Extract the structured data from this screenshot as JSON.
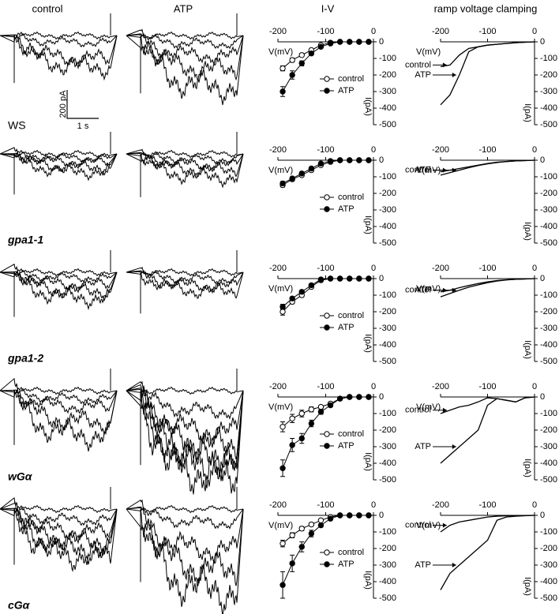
{
  "headers": [
    "control",
    "ATP",
    "I-V",
    "ramp voltage clamping"
  ],
  "scale_bar": {
    "current": "200 pA",
    "time": "1 s"
  },
  "rows": [
    {
      "label": "WS",
      "control_traces": [
        0,
        -50,
        -170,
        -230
      ],
      "atp_traces": [
        0,
        -60,
        -150,
        -250,
        -380
      ]
    },
    {
      "label": "gpa1-1",
      "control_traces": [
        0,
        -30,
        -60,
        -100,
        -130
      ],
      "atp_traces": [
        0,
        -40,
        -80,
        -120,
        -170
      ]
    },
    {
      "label": "gpa1-2",
      "control_traces": [
        0,
        -40,
        -90,
        -140,
        -190
      ],
      "atp_traces": [
        0,
        -50,
        -100,
        -140
      ]
    },
    {
      "label": "wGα",
      "control_traces": [
        0,
        -60,
        -120,
        -230,
        -330
      ],
      "atp_traces": [
        0,
        -150,
        -300,
        -400,
        -500,
        -560,
        -620
      ]
    },
    {
      "label": "cGα",
      "control_traces": [
        0,
        -80,
        -170,
        -240,
        -300,
        -350
      ],
      "atp_traces": [
        0,
        -100,
        -300,
        -450,
        -600
      ]
    }
  ],
  "chart_data": [
    {
      "type": "iv",
      "x_label": "V(mV)",
      "y_label": "I(pA)",
      "x": [
        -190,
        -170,
        -150,
        -130,
        -110,
        -90,
        -70,
        -50,
        -30,
        -10
      ],
      "xlim": [
        -200,
        0
      ],
      "xticks": [
        -200,
        -100,
        0
      ],
      "ylim": [
        -500,
        0
      ],
      "yticks": [
        0,
        -100,
        -200,
        -300,
        -400,
        -500
      ],
      "series": [
        {
          "name": "control",
          "color": "#ffffff",
          "values": [
            -160,
            -110,
            -80,
            -50,
            -20,
            -5,
            0,
            0,
            0,
            0
          ],
          "errors": [
            15,
            12,
            10,
            8,
            6,
            4,
            0,
            0,
            0,
            0
          ]
        },
        {
          "name": "ATP",
          "color": "#000000",
          "values": [
            -300,
            -200,
            -130,
            -70,
            -30,
            -10,
            0,
            0,
            0,
            0
          ],
          "errors": [
            30,
            25,
            15,
            10,
            8,
            4,
            0,
            0,
            0,
            0
          ]
        }
      ]
    },
    {
      "type": "ramp",
      "x_label": "V(mV)",
      "y_label": "I(pA)",
      "x": [
        -200,
        -180,
        -160,
        -140,
        -120,
        -100,
        -80,
        -60,
        -40,
        -20,
        0
      ],
      "xlim": [
        -200,
        0
      ],
      "xticks": [
        -200,
        -100,
        0
      ],
      "ylim": [
        -500,
        0
      ],
      "yticks": [
        0,
        -100,
        -200,
        -300,
        -400,
        -500
      ],
      "series": [
        {
          "name": "control",
          "color": "#000000",
          "values": [
            -150,
            -140,
            -80,
            -40,
            -30,
            -20,
            -15,
            -10,
            -5,
            -2,
            0
          ]
        },
        {
          "name": "ATP",
          "color": "#000000",
          "values": [
            -380,
            -320,
            -200,
            -60,
            -30,
            -20,
            -15,
            -10,
            -5,
            -2,
            0
          ]
        }
      ]
    },
    {
      "type": "iv",
      "x_label": "V(mV)",
      "y_label": "I(pA)",
      "x": [
        -190,
        -170,
        -150,
        -130,
        -110,
        -90,
        -70,
        -50,
        -30,
        -10
      ],
      "xlim": [
        -200,
        0
      ],
      "xticks": [
        -200,
        -100,
        0
      ],
      "ylim": [
        -500,
        0
      ],
      "yticks": [
        0,
        -100,
        -200,
        -300,
        -400,
        -500
      ],
      "series": [
        {
          "name": "control",
          "color": "#ffffff",
          "values": [
            -150,
            -115,
            -90,
            -60,
            -30,
            -10,
            0,
            0,
            0,
            0
          ],
          "errors": [
            12,
            10,
            8,
            6,
            5,
            3,
            0,
            0,
            0,
            0
          ]
        },
        {
          "name": "ATP",
          "color": "#000000",
          "values": [
            -140,
            -110,
            -80,
            -50,
            -20,
            -5,
            0,
            0,
            0,
            0
          ],
          "errors": [
            12,
            10,
            8,
            6,
            5,
            3,
            0,
            0,
            0,
            0
          ]
        }
      ]
    },
    {
      "type": "ramp",
      "x_label": "V(mV)",
      "y_label": "I(pA)",
      "x": [
        -200,
        -180,
        -160,
        -140,
        -120,
        -100,
        -80,
        -60,
        -40,
        -20,
        0
      ],
      "xlim": [
        -200,
        0
      ],
      "xticks": [
        -200,
        -100,
        0
      ],
      "ylim": [
        -500,
        0
      ],
      "yticks": [
        0,
        -100,
        -200,
        -300,
        -400,
        -500
      ],
      "series": [
        {
          "name": "control",
          "color": "#000000",
          "values": [
            -70,
            -60,
            -50,
            -40,
            -30,
            -20,
            -12,
            -8,
            -4,
            -2,
            0
          ]
        },
        {
          "name": "ATP",
          "color": "#000000",
          "values": [
            -90,
            -75,
            -60,
            -45,
            -32,
            -22,
            -14,
            -8,
            -4,
            -2,
            0
          ]
        }
      ]
    },
    {
      "type": "iv",
      "x_label": "V(mV)",
      "y_label": "I(pA)",
      "x": [
        -190,
        -170,
        -150,
        -130,
        -110,
        -90,
        -70,
        -50,
        -30,
        -10
      ],
      "xlim": [
        -200,
        0
      ],
      "xticks": [
        -200,
        -100,
        0
      ],
      "ylim": [
        -500,
        0
      ],
      "yticks": [
        0,
        -100,
        -200,
        -300,
        -400,
        -500
      ],
      "series": [
        {
          "name": "control",
          "color": "#ffffff",
          "values": [
            -200,
            -140,
            -100,
            -50,
            -10,
            0,
            0,
            0,
            0,
            0
          ],
          "errors": [
            20,
            12,
            10,
            6,
            4,
            0,
            0,
            0,
            0,
            0
          ]
        },
        {
          "name": "ATP",
          "color": "#000000",
          "values": [
            -170,
            -120,
            -80,
            -40,
            -5,
            0,
            0,
            0,
            0,
            0
          ],
          "errors": [
            15,
            10,
            8,
            6,
            3,
            0,
            0,
            0,
            0,
            0
          ]
        }
      ]
    },
    {
      "type": "ramp",
      "x_label": "V(mV)",
      "y_label": "I(pA)",
      "x": [
        -200,
        -180,
        -160,
        -140,
        -120,
        -100,
        -80,
        -60,
        -40,
        -20,
        0
      ],
      "xlim": [
        -200,
        0
      ],
      "xticks": [
        -200,
        -100,
        0
      ],
      "ylim": [
        -500,
        0
      ],
      "yticks": [
        0,
        -100,
        -200,
        -300,
        -400,
        -500
      ],
      "series": [
        {
          "name": "control",
          "color": "#000000",
          "values": [
            -80,
            -70,
            -55,
            -42,
            -30,
            -20,
            -12,
            -7,
            -4,
            -2,
            0
          ]
        },
        {
          "name": "ATP",
          "color": "#000000",
          "values": [
            -110,
            -90,
            -70,
            -52,
            -38,
            -25,
            -15,
            -8,
            -4,
            -2,
            0
          ]
        }
      ]
    },
    {
      "type": "iv",
      "x_label": "V(mV)",
      "y_label": "I(pA)",
      "x": [
        -190,
        -170,
        -150,
        -130,
        -110,
        -90,
        -70,
        -50,
        -30,
        -10
      ],
      "xlim": [
        -200,
        0
      ],
      "xticks": [
        -200,
        -100,
        0
      ],
      "ylim": [
        -500,
        0
      ],
      "yticks": [
        0,
        -100,
        -200,
        -300,
        -400,
        -500
      ],
      "series": [
        {
          "name": "control",
          "color": "#ffffff",
          "values": [
            -180,
            -130,
            -100,
            -75,
            -60,
            -40,
            -10,
            0,
            0,
            0
          ],
          "errors": [
            30,
            25,
            20,
            15,
            10,
            8,
            4,
            0,
            0,
            0
          ]
        },
        {
          "name": "ATP",
          "color": "#000000",
          "values": [
            -430,
            -290,
            -250,
            -160,
            -90,
            -50,
            -10,
            0,
            0,
            0
          ],
          "errors": [
            50,
            40,
            30,
            20,
            15,
            10,
            4,
            0,
            0,
            0
          ]
        }
      ]
    },
    {
      "type": "ramp",
      "x_label": "V(mV)",
      "y_label": "I(pA)",
      "x": [
        -200,
        -180,
        -160,
        -140,
        -120,
        -100,
        -80,
        -60,
        -40,
        -20,
        0
      ],
      "xlim": [
        -200,
        0
      ],
      "xticks": [
        -200,
        -100,
        0
      ],
      "ylim": [
        -500,
        0
      ],
      "yticks": [
        0,
        -100,
        -200,
        -300,
        -400,
        -500
      ],
      "series": [
        {
          "name": "control",
          "color": "#000000",
          "values": [
            -100,
            -80,
            -60,
            -50,
            -30,
            -5,
            -10,
            -20,
            -30,
            -5,
            0
          ]
        },
        {
          "name": "ATP",
          "color": "#000000",
          "values": [
            -400,
            -350,
            -300,
            -250,
            -200,
            -50,
            -10,
            -20,
            -30,
            -5,
            0
          ]
        }
      ]
    },
    {
      "type": "iv",
      "x_label": "V(mV)",
      "y_label": "I(pA)",
      "x": [
        -190,
        -170,
        -150,
        -130,
        -110,
        -90,
        -70,
        -50,
        -30,
        -10
      ],
      "xlim": [
        -200,
        0
      ],
      "xticks": [
        -200,
        -100,
        0
      ],
      "ylim": [
        -500,
        0
      ],
      "yticks": [
        0,
        -100,
        -200,
        -300,
        -400,
        -500
      ],
      "series": [
        {
          "name": "control",
          "color": "#ffffff",
          "values": [
            -170,
            -120,
            -80,
            -55,
            -30,
            -10,
            0,
            0,
            0,
            0
          ],
          "errors": [
            20,
            15,
            12,
            10,
            6,
            4,
            0,
            0,
            0,
            0
          ]
        },
        {
          "name": "ATP",
          "color": "#000000",
          "values": [
            -420,
            -290,
            -190,
            -110,
            -60,
            -20,
            0,
            0,
            0,
            0
          ],
          "errors": [
            80,
            50,
            30,
            20,
            10,
            5,
            0,
            0,
            0,
            0
          ]
        }
      ]
    },
    {
      "type": "ramp",
      "x_label": "V(mV)",
      "y_label": "I(pA)",
      "x": [
        -200,
        -180,
        -160,
        -140,
        -120,
        -100,
        -80,
        -60,
        -40,
        -20,
        0
      ],
      "xlim": [
        -200,
        0
      ],
      "xticks": [
        -200,
        -100,
        0
      ],
      "ylim": [
        -500,
        0
      ],
      "yticks": [
        0,
        -100,
        -200,
        -300,
        -400,
        -500
      ],
      "series": [
        {
          "name": "control",
          "color": "#000000",
          "values": [
            -100,
            -60,
            -40,
            -30,
            -20,
            -10,
            -5,
            -3,
            -2,
            -1,
            0
          ]
        },
        {
          "name": "ATP",
          "color": "#000000",
          "values": [
            -450,
            -350,
            -300,
            -250,
            -200,
            -150,
            -30,
            -10,
            -5,
            -2,
            0
          ]
        }
      ]
    }
  ]
}
